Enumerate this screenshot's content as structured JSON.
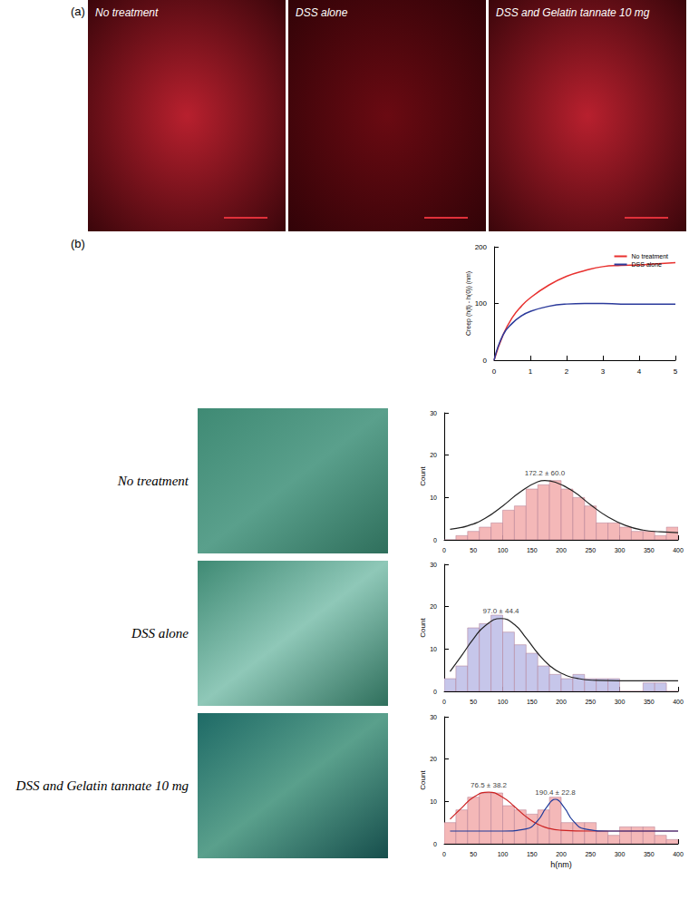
{
  "images": {
    "panel_a": {
      "label": "(a)",
      "captions": [
        "No treatment",
        "DSS alone",
        "DSS and Gelatin tannate 10 mg"
      ]
    },
    "panel_b": {
      "label": "(b)",
      "row_captions": [
        "No treatment",
        "DSS alone",
        "DSS and Gelatin tannate 10 mg"
      ]
    }
  },
  "chart_data": [
    {
      "type": "line",
      "ylabel": "Creep (h(t) - h(0)) (nm)",
      "x": [
        0,
        0.25,
        0.5,
        0.75,
        1,
        1.5,
        2,
        2.5,
        3,
        3.5,
        4,
        4.5,
        5
      ],
      "series": [
        {
          "name": "No treatment",
          "color": "#e8312f",
          "values": [
            0,
            45,
            75,
            95,
            110,
            132,
            148,
            158,
            165,
            167,
            168,
            170,
            172
          ]
        },
        {
          "name": "DSS alone",
          "color": "#2b3a9b",
          "values": [
            0,
            45,
            65,
            78,
            86,
            95,
            99,
            100,
            100,
            99,
            99,
            99,
            99
          ]
        }
      ],
      "xlim": [
        0,
        5
      ],
      "xticks": [
        0,
        1,
        2,
        3,
        4,
        5
      ],
      "ylim": [
        0,
        200
      ],
      "yticks": [
        0,
        100,
        200
      ],
      "legend": "top-right"
    },
    {
      "type": "histogram",
      "ylabel": "Count",
      "bins": [
        0,
        20,
        40,
        60,
        80,
        100,
        120,
        140,
        160,
        180,
        200,
        220,
        240,
        260,
        280,
        300,
        320,
        340,
        360,
        380,
        400
      ],
      "counts": [
        0,
        1,
        2,
        3,
        4,
        7,
        8,
        12,
        13,
        14,
        12,
        10,
        8,
        4,
        4,
        3,
        2,
        2,
        1,
        3
      ],
      "color": "#f4b8b8",
      "fits": [
        {
          "label": "172.2 ± 60.0",
          "color": "#222222",
          "x": [
            10,
            40,
            70,
            100,
            130,
            160,
            172,
            190,
            220,
            250,
            280,
            310,
            340,
            370,
            400
          ],
          "y": [
            2.5,
            3.3,
            5.1,
            8.0,
            11.3,
            13.7,
            14.0,
            13.6,
            11.5,
            8.3,
            5.4,
            3.4,
            2.3,
            1.9,
            1.7
          ]
        }
      ],
      "xlim": [
        0,
        400
      ],
      "xticks": [
        0,
        50,
        100,
        150,
        200,
        250,
        300,
        350,
        400
      ],
      "ylim": [
        0,
        30
      ],
      "yticks": [
        0,
        10,
        20,
        30
      ]
    },
    {
      "type": "histogram",
      "ylabel": "Count",
      "bins": [
        0,
        20,
        40,
        60,
        80,
        100,
        120,
        140,
        160,
        180,
        200,
        220,
        240,
        260,
        280,
        300,
        320,
        340,
        360,
        380,
        400
      ],
      "counts": [
        3,
        6,
        15,
        16,
        18,
        14,
        11,
        9,
        6,
        4,
        3,
        4,
        3,
        3,
        3,
        0,
        0,
        2,
        2,
        0
      ],
      "color": "#c6c6ea",
      "fits": [
        {
          "label": "97.0 ± 44.4",
          "color": "#222222",
          "x": [
            10,
            30,
            50,
            70,
            97,
            120,
            140,
            160,
            180,
            200,
            230,
            260,
            300,
            400
          ],
          "y": [
            4.7,
            8.5,
            12.4,
            15.5,
            17.2,
            15.8,
            12.6,
            9.0,
            6.1,
            4.3,
            3.0,
            2.6,
            2.5,
            2.5
          ]
        }
      ],
      "xlim": [
        0,
        400
      ],
      "xticks": [
        0,
        50,
        100,
        150,
        200,
        250,
        300,
        350,
        400
      ],
      "ylim": [
        0,
        30
      ],
      "yticks": [
        0,
        10,
        20,
        30
      ]
    },
    {
      "type": "histogram",
      "xlabel": "h(nm)",
      "ylabel": "Count",
      "bins": [
        0,
        20,
        40,
        60,
        80,
        100,
        120,
        140,
        160,
        180,
        200,
        220,
        240,
        260,
        280,
        300,
        320,
        340,
        360,
        380,
        400
      ],
      "counts": [
        5,
        8,
        11,
        12,
        12,
        9,
        8,
        7,
        8,
        11,
        5,
        5,
        5,
        3,
        2,
        4,
        4,
        4,
        2,
        1
      ],
      "color": "#f4b8b8",
      "fits": [
        {
          "label": "76.5 ± 38.2",
          "color": "#cc2222",
          "x": [
            10,
            30,
            50,
            76,
            100,
            120,
            140,
            160,
            180,
            200,
            250,
            300,
            400
          ],
          "y": [
            5.8,
            8.5,
            11.0,
            12.2,
            11.0,
            8.8,
            6.4,
            4.6,
            3.6,
            3.2,
            3.0,
            3.0,
            3.0
          ]
        },
        {
          "label": "190.4 ± 22.8",
          "color": "#1f3a9a",
          "x": [
            10,
            100,
            140,
            160,
            175,
            190,
            205,
            220,
            240,
            280,
            400
          ],
          "y": [
            3.0,
            3.0,
            3.5,
            5.5,
            8.6,
            10.5,
            8.6,
            5.5,
            3.5,
            3.0,
            3.0
          ]
        }
      ],
      "xlim": [
        0,
        400
      ],
      "xticks": [
        0,
        50,
        100,
        150,
        200,
        250,
        300,
        350,
        400
      ],
      "ylim": [
        0,
        30
      ],
      "yticks": [
        0,
        10,
        20,
        30
      ]
    }
  ]
}
